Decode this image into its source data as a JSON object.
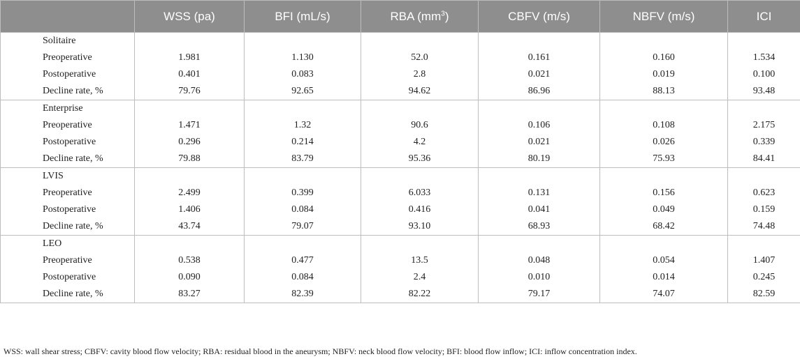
{
  "columns": [
    {
      "label": "",
      "sup": ""
    },
    {
      "label": "WSS (pa)",
      "sup": ""
    },
    {
      "label": "BFI (mL/s)",
      "sup": ""
    },
    {
      "label": "RBA (mm",
      "sup": "3",
      "suffix": ")"
    },
    {
      "label": "CBFV (m/s)",
      "sup": ""
    },
    {
      "label": "NBFV (m/s)",
      "sup": ""
    },
    {
      "label": "ICI",
      "sup": ""
    }
  ],
  "groups": [
    {
      "name": "Solitaire",
      "rows": [
        {
          "label": "Preoperative",
          "values": [
            "1.981",
            "1.130",
            "52.0",
            "0.161",
            "0.160",
            "1.534"
          ]
        },
        {
          "label": "Postoperative",
          "values": [
            "0.401",
            "0.083",
            "2.8",
            "0.021",
            "0.019",
            "0.100"
          ]
        },
        {
          "label": "Decline rate, %",
          "values": [
            "79.76",
            "92.65",
            "94.62",
            "86.96",
            "88.13",
            "93.48"
          ]
        }
      ]
    },
    {
      "name": "Enterprise",
      "rows": [
        {
          "label": "Preoperative",
          "values": [
            "1.471",
            "1.32",
            "90.6",
            "0.106",
            "0.108",
            "2.175"
          ]
        },
        {
          "label": "Postoperative",
          "values": [
            "0.296",
            "0.214",
            "4.2",
            "0.021",
            "0.026",
            "0.339"
          ]
        },
        {
          "label": "Decline rate, %",
          "values": [
            "79.88",
            "83.79",
            "95.36",
            "80.19",
            "75.93",
            "84.41"
          ]
        }
      ]
    },
    {
      "name": "LVIS",
      "rows": [
        {
          "label": "Preoperative",
          "values": [
            "2.499",
            "0.399",
            "6.033",
            "0.131",
            "0.156",
            "0.623"
          ]
        },
        {
          "label": "Postoperative",
          "values": [
            "1.406",
            "0.084",
            "0.416",
            "0.041",
            "0.049",
            "0.159"
          ]
        },
        {
          "label": "Decline rate, %",
          "values": [
            "43.74",
            "79.07",
            "93.10",
            "68.93",
            "68.42",
            "74.48"
          ]
        }
      ]
    },
    {
      "name": "LEO",
      "rows": [
        {
          "label": "Preoperative",
          "values": [
            "0.538",
            "0.477",
            "13.5",
            "0.048",
            "0.054",
            "1.407"
          ]
        },
        {
          "label": "Postoperative",
          "values": [
            "0.090",
            "0.084",
            "2.4",
            "0.010",
            "0.014",
            "0.245"
          ]
        },
        {
          "label": "Decline rate, %",
          "values": [
            "83.27",
            "82.39",
            "82.22",
            "79.17",
            "74.07",
            "82.59"
          ]
        }
      ]
    }
  ],
  "footnote": "WSS: wall shear stress; CBFV: cavity blood flow velocity; RBA: residual blood in the aneurysm; NBFV: neck blood flow velocity; BFI: blood flow inflow; ICI: inflow concentration index.",
  "colors": {
    "header_bg": "#8e8e8e",
    "header_text": "#ffffff",
    "border": "#bdbdbd"
  }
}
